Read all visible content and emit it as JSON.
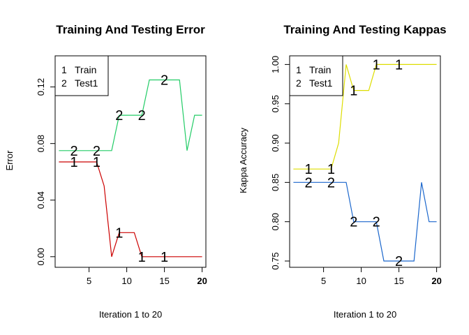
{
  "chart_data": [
    {
      "type": "line",
      "title": "Training And Testing Error",
      "xlabel": "Iteration 1 to 20",
      "ylabel": "Error",
      "xlim": [
        0.5,
        20.5
      ],
      "ylim": [
        -0.0075,
        0.142
      ],
      "x_ticks": [
        "5",
        "10",
        "15",
        "20"
      ],
      "y_ticks": [
        "0.00",
        "0.04",
        "0.08",
        "0.12"
      ],
      "y_tick_values": [
        0.0,
        0.04,
        0.08,
        0.12
      ],
      "x": [
        1,
        2,
        3,
        4,
        5,
        6,
        7,
        8,
        9,
        10,
        11,
        12,
        13,
        14,
        15,
        16,
        17,
        18,
        19,
        20
      ],
      "series": [
        {
          "name": "Train",
          "marker": "1",
          "color": "#cc0000",
          "values": [
            0.067,
            0.067,
            0.067,
            0.067,
            0.067,
            0.067,
            0.05,
            0.0,
            0.017,
            0.017,
            0.017,
            0.0,
            0.0,
            0.0,
            0.0,
            0.0,
            0.0,
            0.0,
            0.0,
            0.0
          ],
          "marker_x": [
            3,
            6,
            9,
            12,
            15
          ]
        },
        {
          "name": "Test1",
          "marker": "2",
          "color": "#22cc66",
          "values": [
            0.075,
            0.075,
            0.075,
            0.075,
            0.075,
            0.075,
            0.075,
            0.075,
            0.1,
            0.1,
            0.1,
            0.1,
            0.125,
            0.125,
            0.125,
            0.125,
            0.125,
            0.075,
            0.1,
            0.1
          ],
          "marker_x": [
            3,
            6,
            9,
            12,
            15
          ]
        }
      ],
      "legend": {
        "placement": "top-left",
        "entries": [
          {
            "marker": "1",
            "label": "Train"
          },
          {
            "marker": "2",
            "label": "Test1"
          }
        ]
      }
    },
    {
      "type": "line",
      "title": "Training And Testing Kappas",
      "xlabel": "Iteration 1 to 20",
      "ylabel": "Kappa Accuracy",
      "xlim": [
        0.5,
        20.5
      ],
      "ylim": [
        0.742,
        1.011
      ],
      "x_ticks": [
        "5",
        "10",
        "15",
        "20"
      ],
      "y_ticks": [
        "0.75",
        "0.80",
        "0.85",
        "0.90",
        "0.95",
        "1.00"
      ],
      "y_tick_values": [
        0.75,
        0.8,
        0.85,
        0.9,
        0.95,
        1.0
      ],
      "x": [
        1,
        2,
        3,
        4,
        5,
        6,
        7,
        8,
        9,
        10,
        11,
        12,
        13,
        14,
        15,
        16,
        17,
        18,
        19,
        20
      ],
      "series": [
        {
          "name": "Train",
          "marker": "1",
          "color": "#dddd00",
          "values": [
            0.867,
            0.867,
            0.867,
            0.867,
            0.867,
            0.867,
            0.9,
            1.0,
            0.967,
            0.967,
            0.967,
            1.0,
            1.0,
            1.0,
            1.0,
            1.0,
            1.0,
            1.0,
            1.0,
            1.0
          ],
          "marker_x": [
            3,
            6,
            9,
            12,
            15
          ]
        },
        {
          "name": "Test1",
          "marker": "2",
          "color": "#1a66cc",
          "values": [
            0.85,
            0.85,
            0.85,
            0.85,
            0.85,
            0.85,
            0.85,
            0.85,
            0.8,
            0.8,
            0.8,
            0.8,
            0.75,
            0.75,
            0.75,
            0.75,
            0.75,
            0.85,
            0.8,
            0.8
          ],
          "marker_x": [
            3,
            6,
            9,
            12,
            15
          ]
        }
      ],
      "legend": {
        "placement": "top-left",
        "entries": [
          {
            "marker": "1",
            "label": "Train"
          },
          {
            "marker": "2",
            "label": "Test1"
          }
        ]
      }
    }
  ]
}
